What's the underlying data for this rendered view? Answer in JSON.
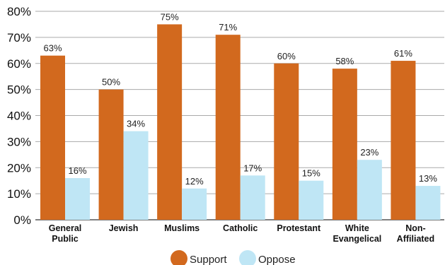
{
  "chart_data": {
    "type": "bar",
    "title": "",
    "xlabel": "",
    "ylabel": "",
    "ylim": [
      0,
      80
    ],
    "yticks": [
      "0%",
      "10%",
      "20%",
      "30%",
      "40%",
      "50%",
      "60%",
      "70%",
      "80%"
    ],
    "grid": true,
    "legend_position": "bottom-center",
    "categories": [
      [
        "General",
        "Public"
      ],
      [
        "Jewish"
      ],
      [
        "Muslims"
      ],
      [
        "Catholic"
      ],
      [
        "Protestant"
      ],
      [
        "White",
        "Evangelical"
      ],
      [
        "Non-",
        "Affiliated"
      ]
    ],
    "series": [
      {
        "name": "Support",
        "color": "#d2691e",
        "values": [
          63,
          50,
          75,
          71,
          60,
          58,
          61
        ],
        "labels": [
          "63%",
          "50%",
          "75%",
          "71%",
          "60%",
          "58%",
          "61%"
        ]
      },
      {
        "name": "Oppose",
        "color": "#bfe6f5",
        "values": [
          16,
          34,
          12,
          17,
          15,
          23,
          13
        ],
        "labels": [
          "16%",
          "34%",
          "12%",
          "17%",
          "15%",
          "23%",
          "13%"
        ]
      }
    ]
  }
}
